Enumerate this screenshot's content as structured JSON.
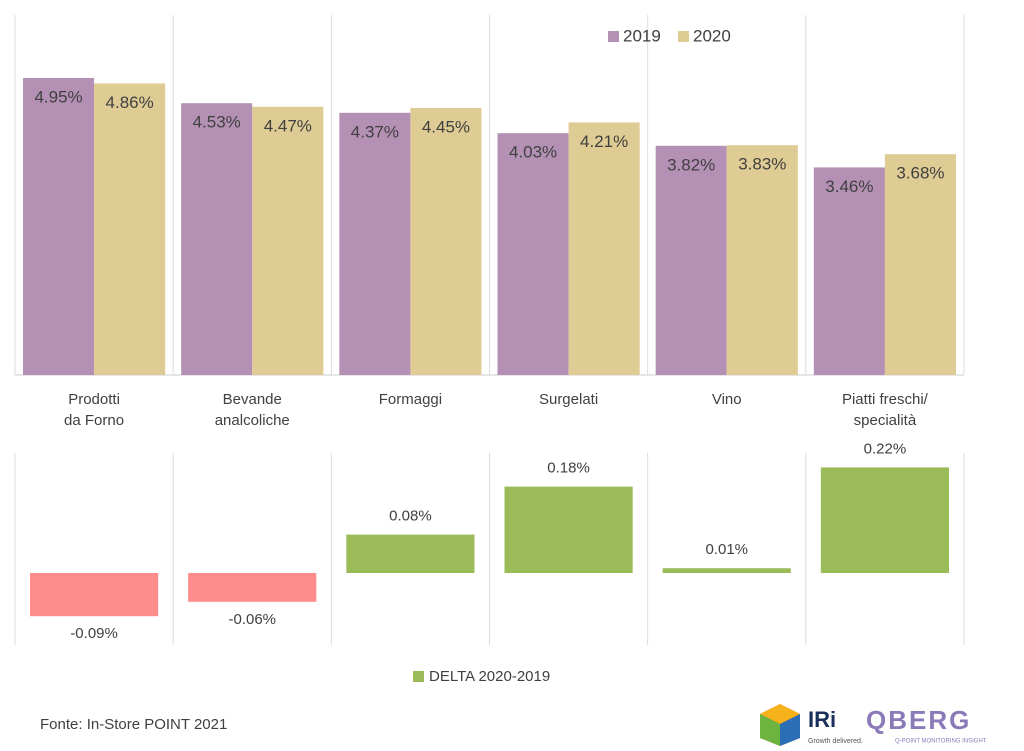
{
  "chart_data": [
    {
      "type": "bar",
      "categories": [
        [
          "Prodotti",
          "da Forno"
        ],
        [
          "Bevande",
          "analcoliche"
        ],
        [
          "Formaggi"
        ],
        [
          "Surgelati"
        ],
        [
          "Vino"
        ],
        [
          "Piatti freschi/",
          "specialità"
        ]
      ],
      "series": [
        {
          "name": "2019",
          "color": "#b491b4",
          "values": [
            4.95,
            4.53,
            4.37,
            4.03,
            3.82,
            3.46
          ],
          "value_labels": [
            "4.95%",
            "4.53%",
            "4.37%",
            "4.03%",
            "3.82%",
            "3.46%"
          ]
        },
        {
          "name": "2020",
          "color": "#dfcb94",
          "values": [
            4.86,
            4.47,
            4.45,
            4.21,
            3.83,
            3.68
          ],
          "value_labels": [
            "4.86%",
            "4.47%",
            "4.45%",
            "4.21%",
            "3.83%",
            "3.68%"
          ]
        }
      ],
      "ylim": [
        0,
        6
      ],
      "legend": "top-right"
    },
    {
      "type": "bar",
      "series": [
        {
          "name": "DELTA 2020-2019",
          "color": "#9bbb59",
          "negative_color": "#ff8c8c",
          "values": [
            -0.09,
            -0.06,
            0.08,
            0.18,
            0.01,
            0.22
          ],
          "value_labels": [
            "-0.09%",
            "-0.06%",
            "0.08%",
            "0.18%",
            "0.01%",
            "0.22%"
          ]
        }
      ],
      "ylim": [
        -0.15,
        0.25
      ],
      "legend": "bottom"
    }
  ],
  "footer": {
    "source": "Fonte: In-Store POINT 2021",
    "logo_iri": "IRi",
    "logo_iri_tagline": "Growth delivered.",
    "logo_qberg": "QBERG",
    "logo_qberg_tagline": "Q-POINT MONITORING INSIGHT"
  }
}
